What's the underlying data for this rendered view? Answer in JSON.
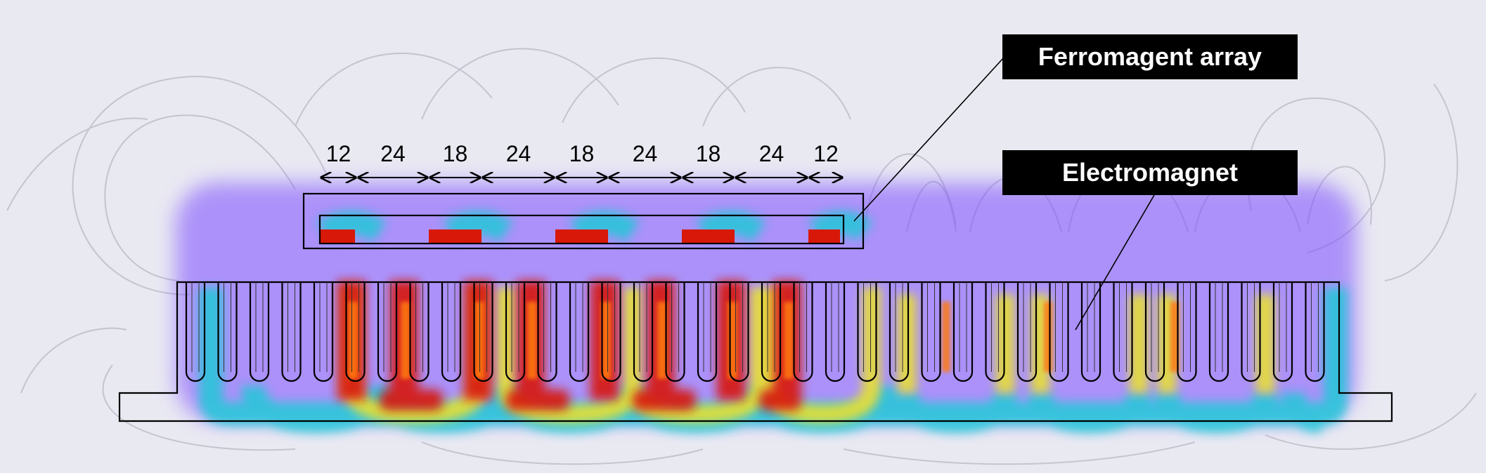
{
  "labels": {
    "ferromagnet_array": "Ferromagent array",
    "electromagnet": "Electromagnet"
  },
  "dimensions": [
    "12",
    "24",
    "18",
    "24",
    "18",
    "24",
    "18",
    "24",
    "12"
  ],
  "colors": {
    "background": "#e9e9f2",
    "flux_low": "#7a4cff",
    "flux_mid": "#20c8d8",
    "flux_mid_high": "#e8e030",
    "flux_high": "#d81808",
    "outline": "#000000"
  }
}
